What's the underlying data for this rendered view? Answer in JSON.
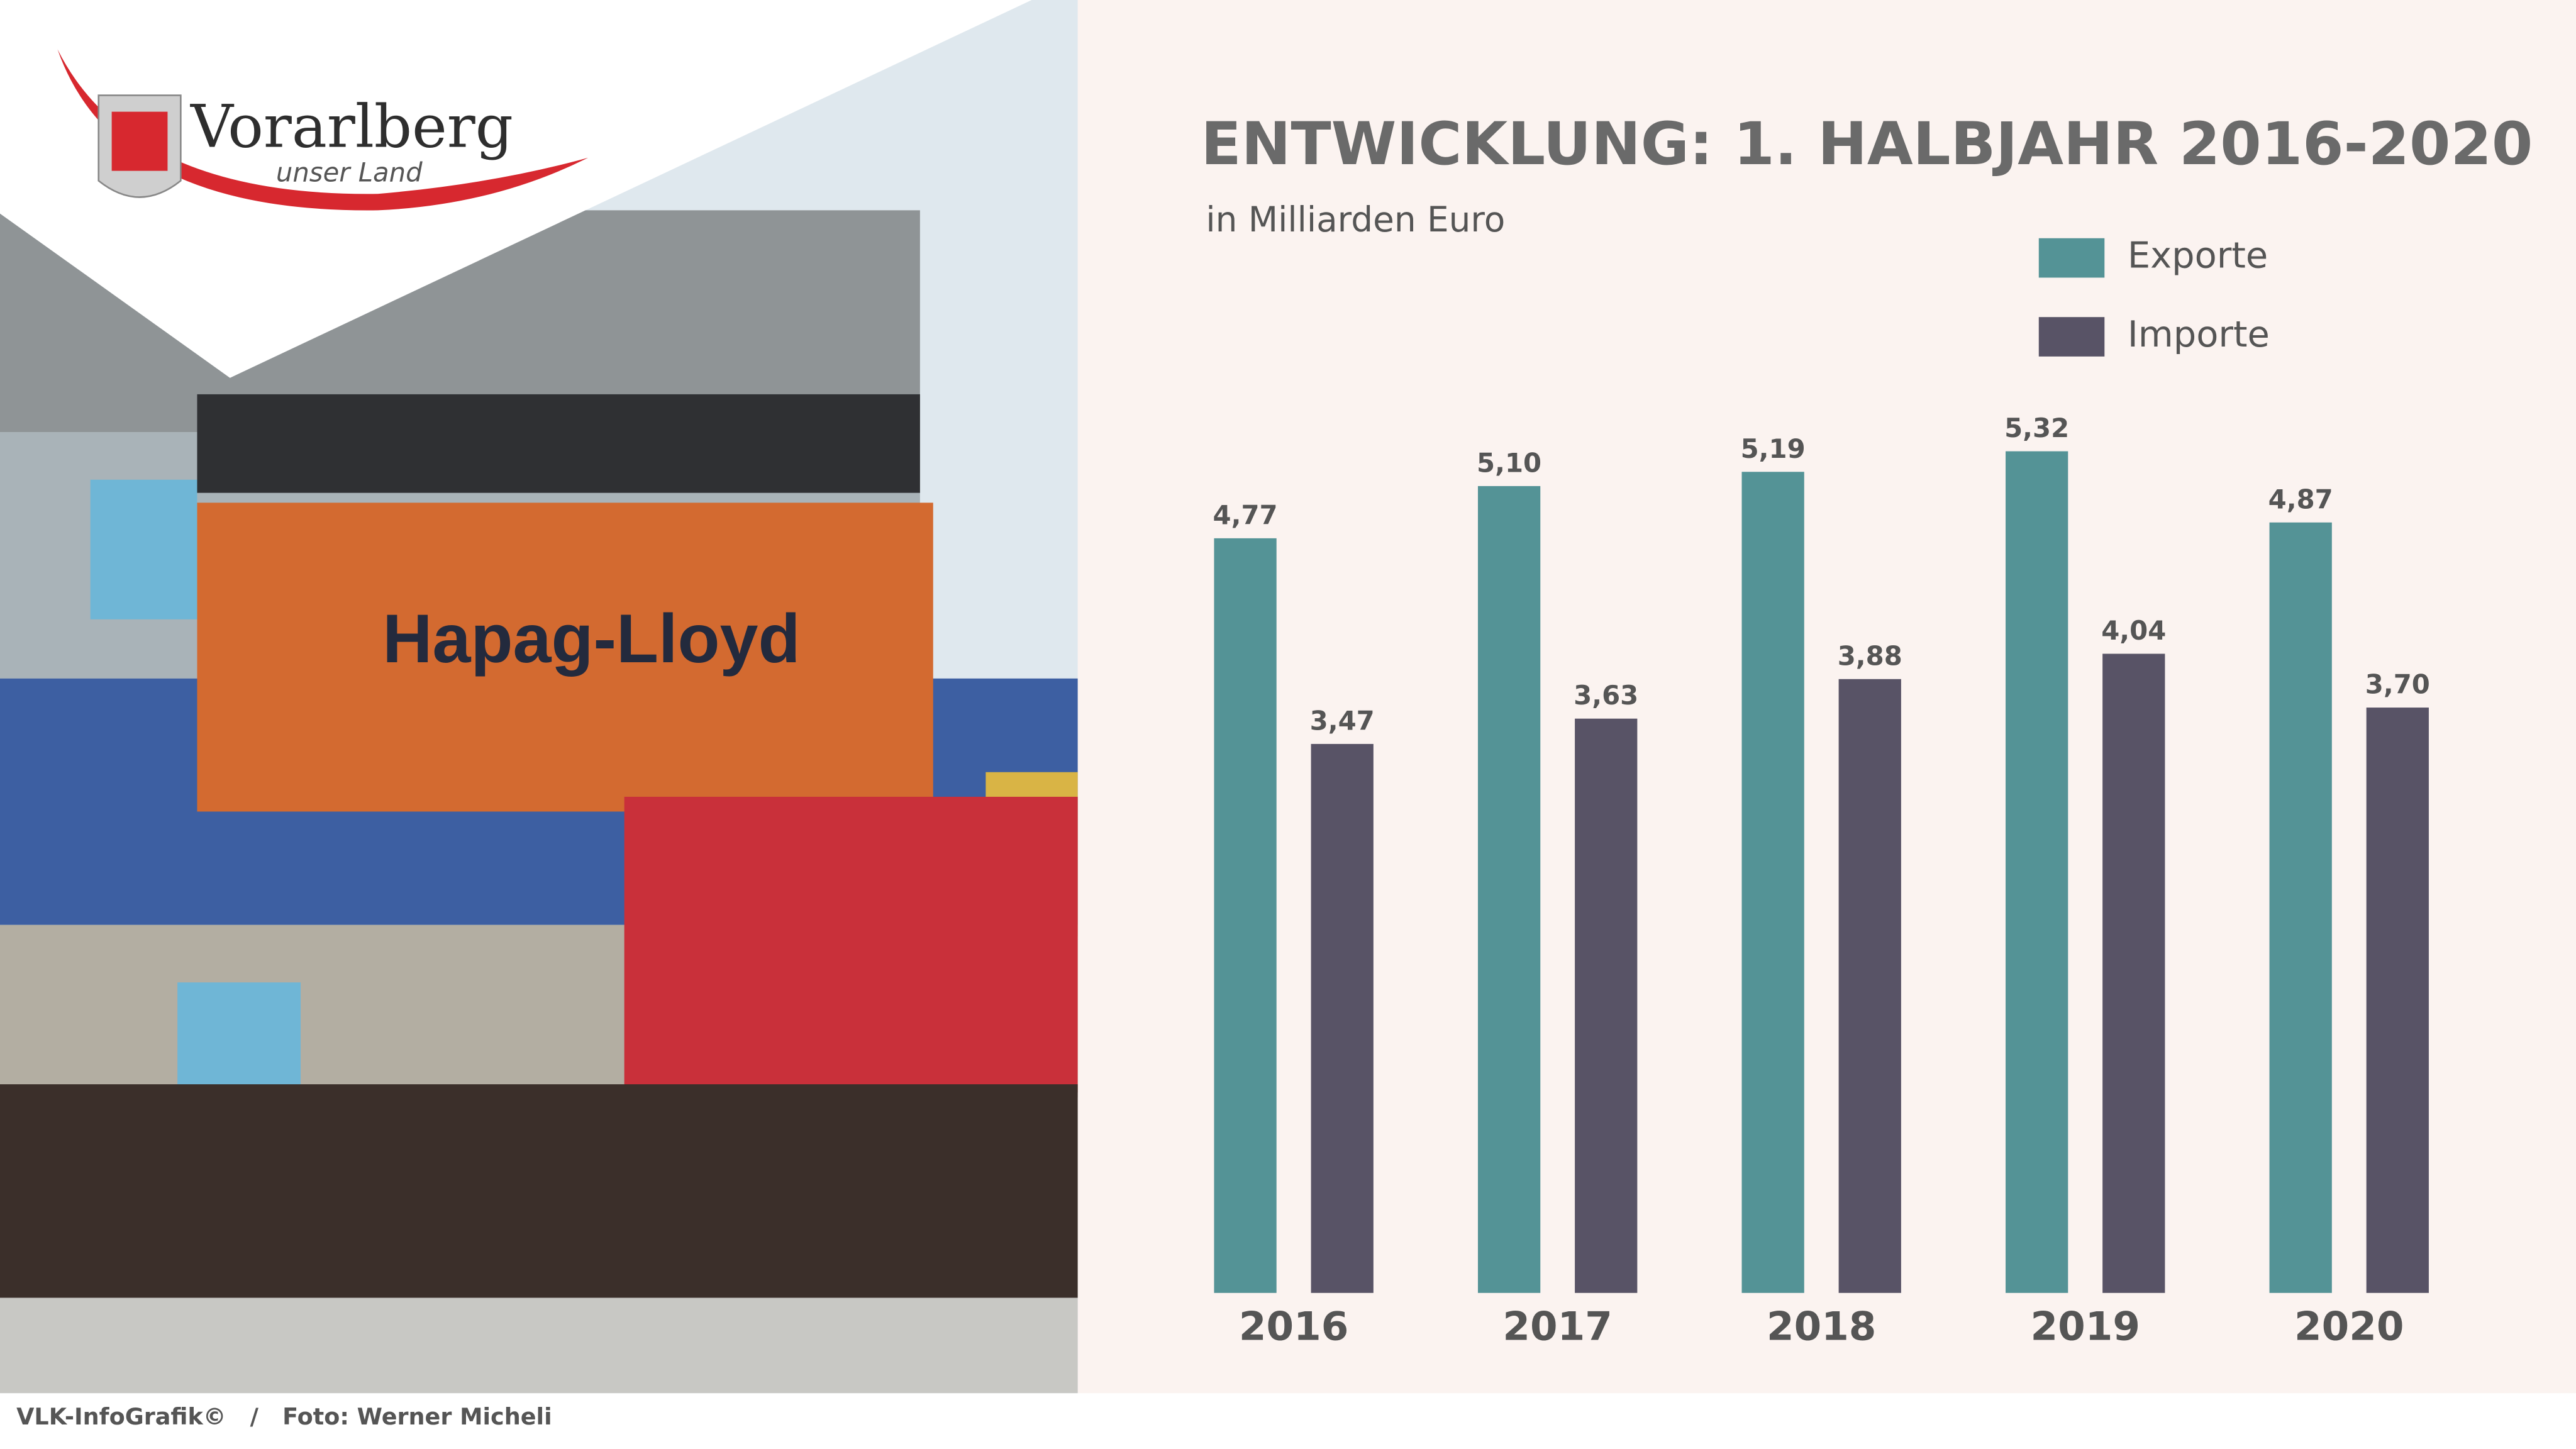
{
  "logo": {
    "name": "Vorarlberg",
    "tagline": "unser Land"
  },
  "chart_data": {
    "type": "bar",
    "title": "ENTWICKLUNG: 1. HALBJAHR 2016-2020",
    "subtitle": "in Milliarden Euro",
    "categories": [
      "2016",
      "2017",
      "2018",
      "2019",
      "2020"
    ],
    "series": [
      {
        "name": "Exporte",
        "color": "#549396",
        "values": [
          4.77,
          5.1,
          5.19,
          5.32,
          4.87
        ],
        "value_labels": [
          "4,77",
          "5,10",
          "5,19",
          "5,32",
          "4,87"
        ]
      },
      {
        "name": "Importe",
        "color": "#585366",
        "values": [
          3.47,
          3.63,
          3.88,
          4.04,
          3.7
        ],
        "value_labels": [
          "3,47",
          "3,63",
          "3,88",
          "4,04",
          "3,70"
        ]
      }
    ],
    "ylim": [
      0,
      8
    ]
  },
  "footer": "VLK-InfoGrafik©   /   Foto: Werner Micheli"
}
